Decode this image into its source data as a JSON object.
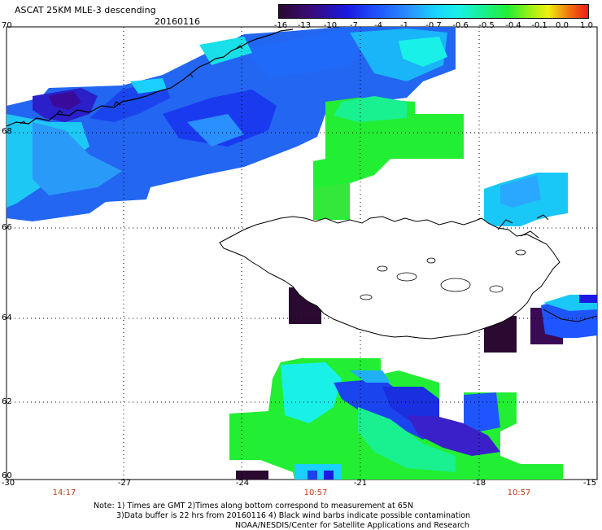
{
  "header": {
    "title": "ASCAT 25KM MLE-3 descending",
    "date": "20160116"
  },
  "colorbar": {
    "labels": [
      "-16",
      "-13",
      "-10",
      "-7",
      "-4",
      "-1",
      "-0.7",
      "-0.6",
      "-0.5",
      "-0.4",
      "-0.1",
      "0.0",
      "1.0"
    ],
    "colors": [
      "#2a0a30",
      "#3a0a78",
      "#1a1ae0",
      "#1f55ff",
      "#2a90ff",
      "#19d0ff",
      "#19f0e8",
      "#19f090",
      "#22ee33",
      "#a8f012",
      "#f0f010",
      "#f07010",
      "#f01a1a"
    ]
  },
  "map": {
    "lat_labels": [
      "70",
      "68",
      "66",
      "64",
      "62",
      "60"
    ],
    "lon_labels": [
      "-30",
      "-27",
      "-24",
      "-21",
      "-18",
      "-15"
    ],
    "times": [
      "14:17",
      "10:57",
      "10:57"
    ]
  },
  "notes": {
    "line1": "Note: 1) Times are GMT 2)Times along bottom correspond to measurement at 65N",
    "line2": "3)Data buffer is 22 hrs from 20160116 4) Black wind barbs indicate possible contamination",
    "line3": "NOAA/NESDIS/Center for Satellite Applications and Research"
  }
}
